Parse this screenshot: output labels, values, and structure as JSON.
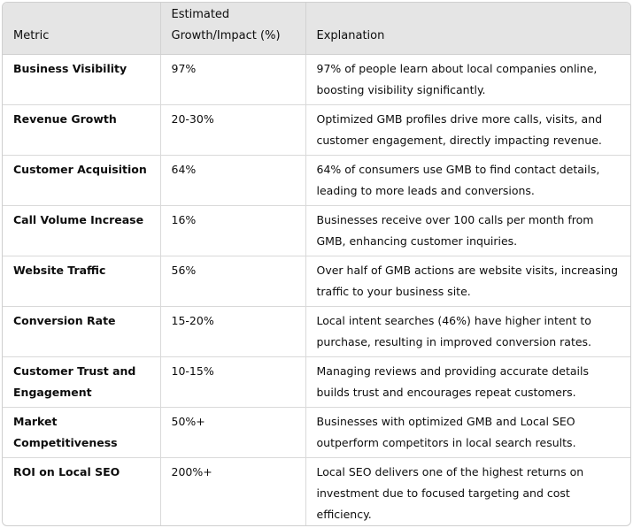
{
  "table": {
    "headers": {
      "metric": "Metric",
      "impact": "Estimated Growth/Impact (%)",
      "explanation": "Explanation"
    },
    "rows": [
      {
        "metric": "Business Visibility",
        "impact": "97%",
        "explanation": "97% of people learn about local companies online, boosting visibility significantly."
      },
      {
        "metric": "Revenue Growth",
        "impact": "20-30%",
        "explanation": "Optimized GMB profiles drive more calls, visits, and customer engagement, directly impacting revenue."
      },
      {
        "metric": "Customer Acquisition",
        "impact": "64%",
        "explanation": "64% of consumers use GMB to find contact details, leading to more leads and conversions."
      },
      {
        "metric": "Call Volume Increase",
        "impact": "16%",
        "explanation": "Businesses receive over 100 calls per month from GMB, enhancing customer inquiries."
      },
      {
        "metric": "Website Traffic",
        "impact": "56%",
        "explanation": "Over half of GMB actions are website visits, increasing traffic to your business site."
      },
      {
        "metric": "Conversion Rate",
        "impact": "15-20%",
        "explanation": "Local intent searches (46%) have higher intent to purchase, resulting in improved conversion rates."
      },
      {
        "metric": "Customer Trust and Engagement",
        "impact": "10-15%",
        "explanation": "Managing reviews and providing accurate details builds trust and encourages repeat customers."
      },
      {
        "metric": "Market Competitiveness",
        "impact": "50%+",
        "explanation": "Businesses with optimized GMB and Local SEO outperform competitors in local search results."
      },
      {
        "metric": "ROI on Local SEO",
        "impact": "200%+",
        "explanation": "Local SEO delivers one of the highest returns on investment due to focused targeting and cost efficiency."
      }
    ]
  }
}
